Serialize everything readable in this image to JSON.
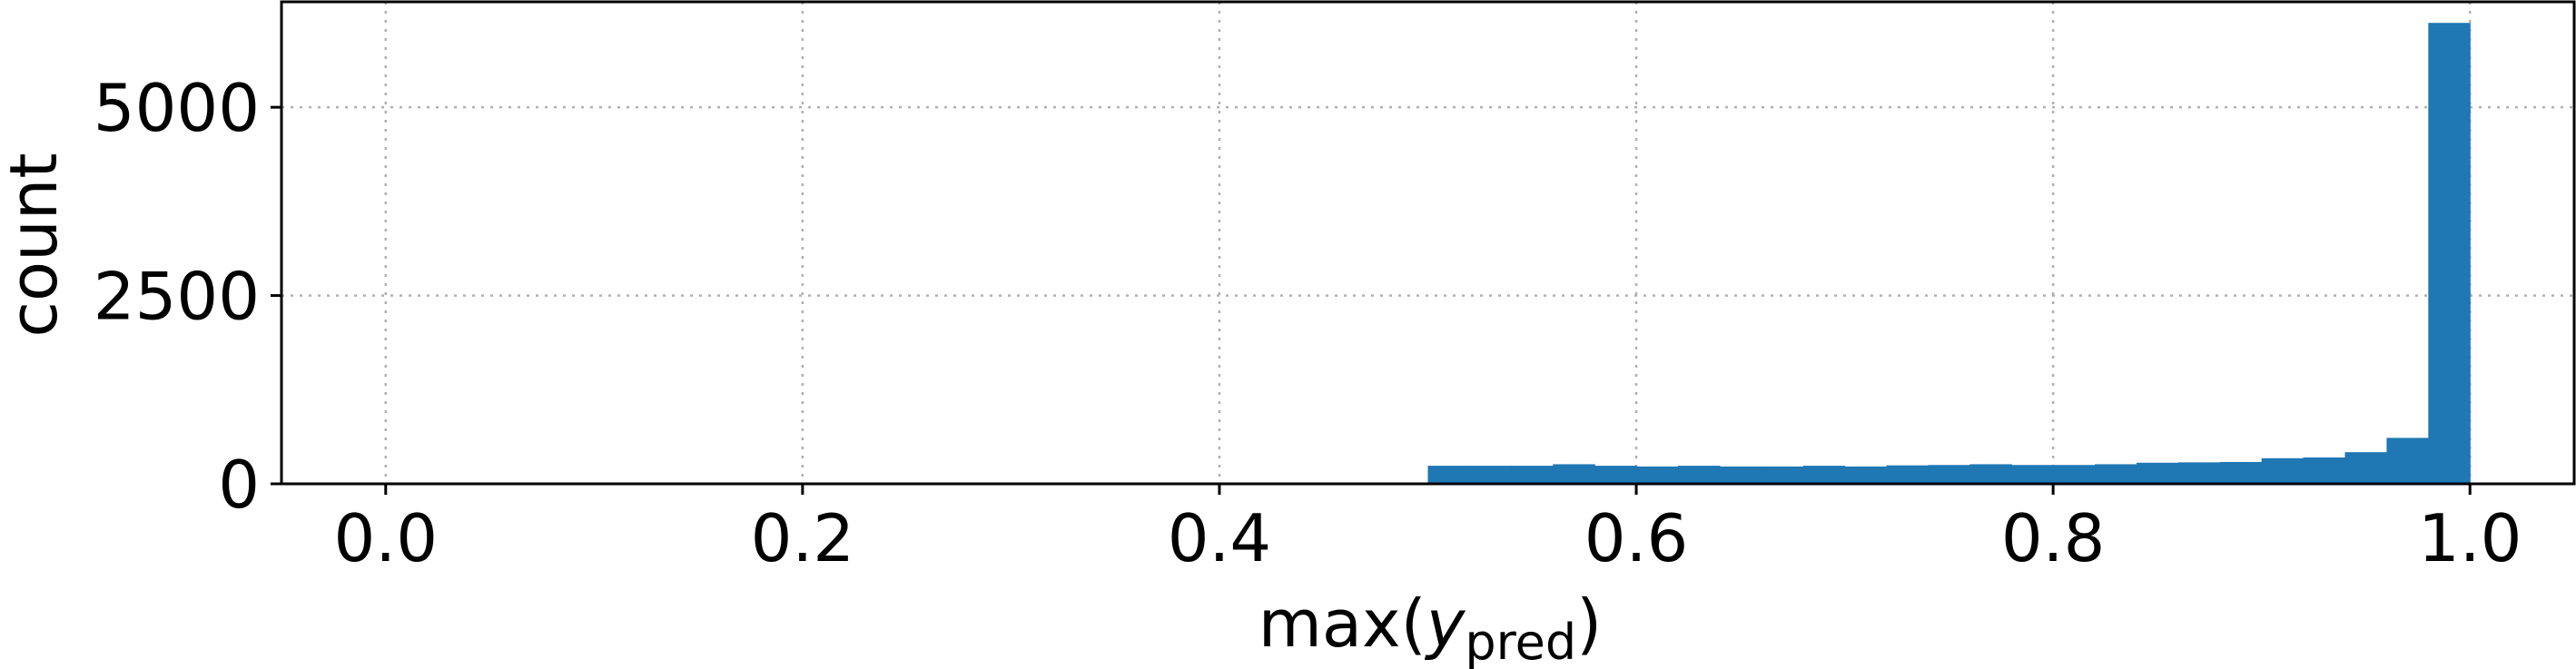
{
  "chart_data": {
    "type": "histogram",
    "title": "",
    "xlabel": "max(",
    "xlabel_var": "y",
    "xlabel_sub": "pred",
    "xlabel_close": ")",
    "ylabel": "count",
    "xlim": [
      -0.05,
      1.05
    ],
    "ylim": [
      0,
      6400
    ],
    "xticks": [
      0.0,
      0.2,
      0.4,
      0.6,
      0.8,
      1.0
    ],
    "xtick_labels": [
      "0.0",
      "0.2",
      "0.4",
      "0.6",
      "0.8",
      "1.0"
    ],
    "yticks": [
      0,
      2500,
      5000
    ],
    "ytick_labels": [
      "0",
      "2500",
      "5000"
    ],
    "grid": true,
    "bar_color": "#1f77b4",
    "bin_edges": [
      0.5,
      0.52,
      0.54,
      0.56,
      0.58,
      0.6,
      0.62,
      0.64,
      0.66,
      0.68,
      0.7,
      0.72,
      0.74,
      0.76,
      0.78,
      0.8,
      0.82,
      0.84,
      0.86,
      0.88,
      0.9,
      0.92,
      0.94,
      0.96,
      0.98,
      1.0
    ],
    "counts": [
      240,
      240,
      240,
      260,
      240,
      230,
      240,
      230,
      230,
      240,
      230,
      245,
      250,
      260,
      250,
      250,
      260,
      280,
      285,
      290,
      340,
      350,
      420,
      610,
      6120
    ]
  }
}
